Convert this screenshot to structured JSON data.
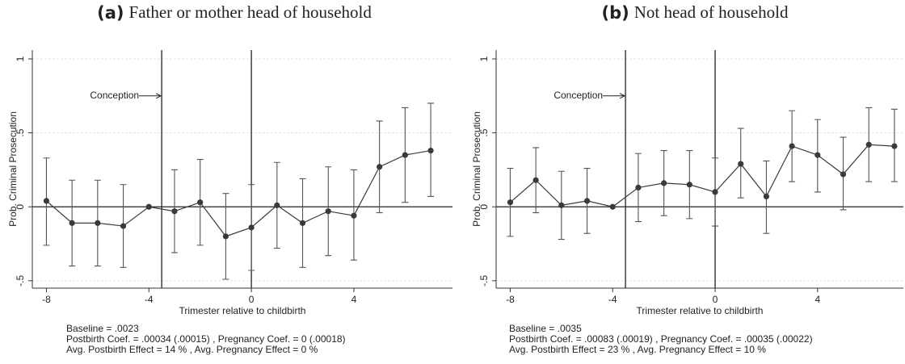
{
  "chart_data": [
    {
      "type": "line",
      "label": "(a)",
      "title": "Father or mother head of household",
      "xlabel": "Trimester relative to childbirth",
      "ylabel": "Prob. Criminal Prosecution",
      "x": [
        -8,
        -7,
        -6,
        -5,
        -4,
        -3,
        -2,
        -1,
        0,
        1,
        2,
        3,
        4,
        5,
        6,
        7
      ],
      "series": [
        {
          "color": "#3a3a3a",
          "values": [
            0.04,
            -0.11,
            -0.11,
            -0.13,
            0,
            -0.03,
            0.03,
            -0.2,
            -0.14,
            0.01,
            -0.11,
            -0.03,
            -0.06,
            0.27,
            0.35,
            0.38
          ],
          "lower": [
            -0.26,
            -0.4,
            -0.4,
            -0.41,
            null,
            -0.31,
            -0.26,
            -0.49,
            -0.43,
            -0.28,
            -0.41,
            -0.33,
            -0.36,
            -0.04,
            0.03,
            0.07
          ],
          "upper": [
            0.33,
            0.18,
            0.18,
            0.15,
            null,
            0.25,
            0.32,
            0.09,
            0.15,
            0.3,
            0.19,
            0.27,
            0.25,
            0.58,
            0.67,
            0.7
          ]
        }
      ],
      "vlines": [
        -3.5,
        0
      ],
      "annotation": {
        "text": "Conception",
        "x": -3.5,
        "y": 0.75
      },
      "notes": [
        "Baseline = .0023",
        "Postbirth Coef. = .00034 (.00015) , Pregnancy Coef. = 0 (.00018)",
        "Avg. Postbirth Effect = 14 % , Avg. Pregnancy Effect = 0 %"
      ],
      "xlim": [
        -8.55,
        7.85
      ],
      "ylim": [
        -0.55,
        1.06
      ],
      "xticks": [
        -8,
        -4,
        0,
        4
      ],
      "yticks": [
        {
          "value": -0.5,
          "label": "-.5"
        },
        0,
        {
          "value": 0.5,
          "label": ".5"
        },
        1
      ],
      "grid": true
    },
    {
      "type": "line",
      "label": "(b)",
      "title": "Not head of household",
      "xlabel": "Trimester relative to childbirth",
      "ylabel": "Prob. Criminal Prosecution",
      "x": [
        -8,
        -7,
        -6,
        -5,
        -4,
        -3,
        -2,
        -1,
        0,
        1,
        2,
        3,
        4,
        5,
        6,
        7
      ],
      "series": [
        {
          "color": "#3a3a3a",
          "values": [
            0.03,
            0.18,
            0.01,
            0.04,
            0,
            0.13,
            0.16,
            0.15,
            0.1,
            0.29,
            0.07,
            0.41,
            0.35,
            0.22,
            0.42,
            0.41
          ],
          "lower": [
            -0.2,
            -0.04,
            -0.22,
            -0.18,
            null,
            -0.1,
            -0.06,
            -0.08,
            -0.13,
            0.06,
            -0.18,
            0.17,
            0.1,
            -0.02,
            0.17,
            0.17
          ],
          "upper": [
            0.26,
            0.4,
            0.24,
            0.26,
            null,
            0.36,
            0.38,
            0.38,
            0.33,
            0.53,
            0.31,
            0.65,
            0.59,
            0.47,
            0.67,
            0.66
          ]
        }
      ],
      "vlines": [
        -3.5,
        0
      ],
      "annotation": {
        "text": "Conception",
        "x": -3.5,
        "y": 0.75
      },
      "notes": [
        "Baseline = .0035",
        "Postbirth Coef. = .00083 (.00019) , Pregnancy Coef. = .00035 (.00022)",
        "Avg. Postbirth Effect = 23 % , Avg. Pregnancy Effect = 10 %"
      ],
      "xlim": [
        -8.55,
        7.35
      ],
      "ylim": [
        -0.55,
        1.06
      ],
      "xticks": [
        -8,
        -4,
        0,
        4
      ],
      "yticks": [
        {
          "value": -0.5,
          "label": "-.5"
        },
        0,
        {
          "value": 0.5,
          "label": ".5"
        },
        1
      ],
      "grid": true
    }
  ]
}
